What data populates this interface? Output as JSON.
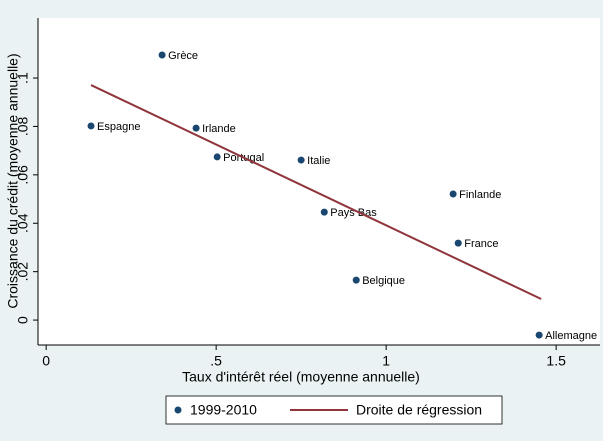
{
  "chart_data": {
    "type": "scatter",
    "xlabel": "Taux d'intérêt réel (moyenne annuelle)",
    "ylabel": "Croissance du crédit (moyenne annuelle)",
    "xlim": [
      -0.024,
      1.629
    ],
    "ylim": [
      -0.0103,
      0.1248
    ],
    "xticks": [
      0,
      {
        "value": 0.5,
        "label": ".5"
      },
      1,
      1.5
    ],
    "yticks": [
      0,
      {
        "value": 0.02,
        "label": ".02"
      },
      {
        "value": 0.04,
        "label": ".04"
      },
      {
        "value": 0.06,
        "label": ".06"
      },
      {
        "value": 0.08,
        "label": ".08"
      },
      {
        "value": 0.1,
        "label": ".1"
      }
    ],
    "series": [
      {
        "name": "1999-2010",
        "type": "scatter",
        "color": "#1a476f",
        "labels": [
          "Grèce",
          "Espagne",
          "Irlande",
          "Portugal",
          "Italie",
          "Pays Bas",
          "Finlande",
          "France",
          "Belgique",
          "Allemagne"
        ],
        "x": [
          0.341,
          0.132,
          0.441,
          0.503,
          0.75,
          0.818,
          1.197,
          1.212,
          0.912,
          1.45
        ],
        "values": [
          0.1095,
          0.0802,
          0.0793,
          0.0674,
          0.0661,
          0.0446,
          0.0521,
          0.0318,
          0.0165,
          -0.0062
        ]
      },
      {
        "name": "Droite de régression",
        "type": "line",
        "color": "#90353b",
        "x": [
          0.132,
          1.456
        ],
        "values": [
          0.0971,
          0.0087
        ]
      }
    ]
  }
}
